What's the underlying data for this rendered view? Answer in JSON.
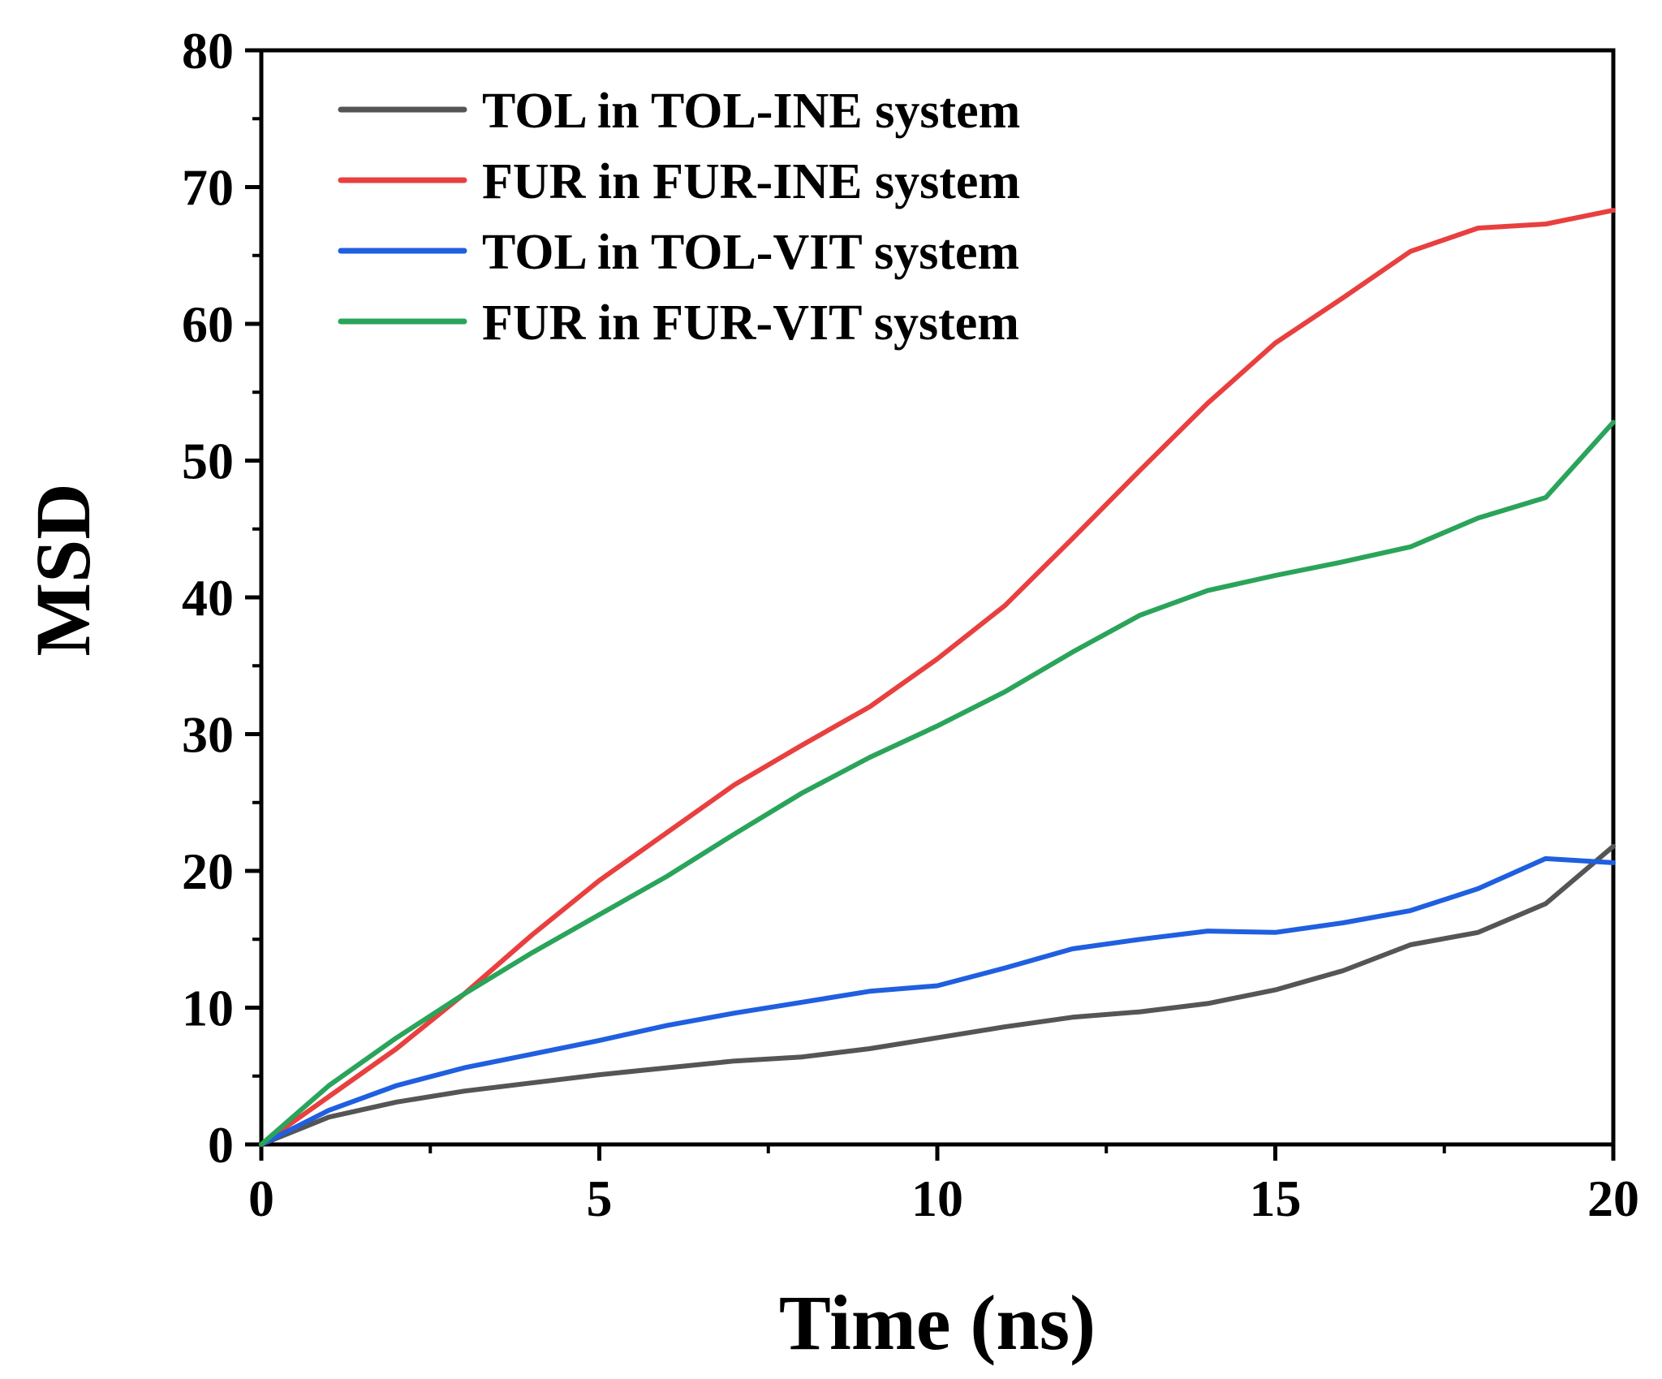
{
  "chart_data": {
    "type": "line",
    "title": "",
    "xlabel": "Time (ns)",
    "ylabel": "MSD",
    "xlim": [
      0,
      20
    ],
    "ylim": [
      0,
      80
    ],
    "xticks": [
      0,
      5,
      10,
      15,
      20
    ],
    "yticks": [
      0,
      10,
      20,
      30,
      40,
      50,
      60,
      70,
      80
    ],
    "x_minor_step": 2.5,
    "y_minor_step": 5,
    "grid": false,
    "legend_position": "top-left",
    "x": [
      0,
      1,
      2,
      3,
      4,
      5,
      6,
      7,
      8,
      9,
      10,
      11,
      12,
      13,
      14,
      15,
      16,
      17,
      18,
      19,
      20
    ],
    "series": [
      {
        "name": "TOL in TOL-INE system",
        "color": "#555555",
        "values": [
          0,
          2.0,
          3.1,
          3.9,
          4.5,
          5.1,
          5.6,
          6.1,
          6.4,
          7.0,
          7.8,
          8.6,
          9.3,
          9.7,
          10.3,
          11.3,
          12.7,
          14.6,
          15.5,
          17.6,
          21.8
        ]
      },
      {
        "name": "FUR in FUR-INE system",
        "color": "#e8403f",
        "values": [
          0,
          3.5,
          7.0,
          11.0,
          15.3,
          19.3,
          22.8,
          26.3,
          29.2,
          32.0,
          35.5,
          39.4,
          44.3,
          49.3,
          54.2,
          58.6,
          61.9,
          65.3,
          67.0,
          67.3,
          68.3
        ]
      },
      {
        "name": "TOL in TOL-VIT system",
        "color": "#1f5fe0",
        "values": [
          0,
          2.5,
          4.3,
          5.6,
          6.6,
          7.6,
          8.7,
          9.6,
          10.4,
          11.2,
          11.6,
          12.9,
          14.3,
          15.0,
          15.6,
          15.5,
          16.2,
          17.1,
          18.7,
          20.9,
          20.6
        ]
      },
      {
        "name": "FUR in FUR-VIT system",
        "color": "#2aa45a",
        "values": [
          0,
          4.3,
          7.8,
          11.0,
          14.0,
          16.8,
          19.6,
          22.7,
          25.7,
          28.3,
          30.6,
          33.1,
          36.0,
          38.7,
          40.5,
          41.6,
          42.6,
          43.7,
          45.8,
          47.3,
          52.8
        ]
      }
    ]
  }
}
